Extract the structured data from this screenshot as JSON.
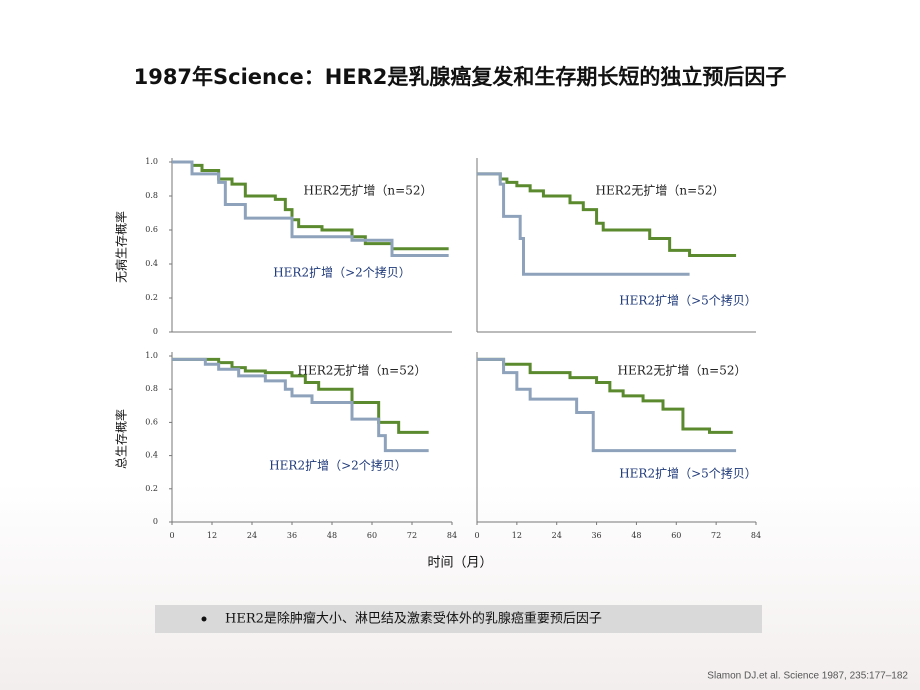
{
  "title": "1987年Science：HER2是乳腺癌复发和生存期长短的独立预后因子",
  "x_label": "时间（月）",
  "note": "HER2是除肿瘤大小、淋巴结及激素受体外的乳腺癌重要预后因子",
  "citation": "Slamon DJ.et al. Science 1987, 235:177–182",
  "chart_data": [
    {
      "type": "line",
      "step": true,
      "ylabel": "无病生存概率",
      "xlim": [
        0,
        84
      ],
      "ylim": [
        0,
        1
      ],
      "yticks": [
        {
          "value": 1,
          "label": "1.0"
        },
        {
          "value": 0.8,
          "label": "0.8"
        },
        {
          "value": 0.6,
          "label": "0.6"
        },
        {
          "value": 0.4,
          "label": "0.4"
        },
        {
          "value": 0.2,
          "label": "0.2"
        },
        {
          "value": 0,
          "label": "0"
        }
      ],
      "series": [
        {
          "name": "HER2无扩增（n=52）",
          "color": "#5b8a2e",
          "x": [
            0,
            6,
            9,
            14,
            18,
            22,
            31,
            34,
            36,
            38,
            45,
            54,
            58,
            66,
            83
          ],
          "values": [
            1,
            0.98,
            0.95,
            0.9,
            0.87,
            0.8,
            0.78,
            0.72,
            0.66,
            0.62,
            0.6,
            0.56,
            0.52,
            0.49,
            0.49
          ]
        },
        {
          "name": "HER2扩增（>2个拷贝）",
          "color": "#8fa2bb",
          "x": [
            0,
            6,
            14,
            16,
            22,
            36,
            54,
            66,
            83
          ],
          "values": [
            1,
            0.93,
            0.88,
            0.75,
            0.67,
            0.56,
            0.54,
            0.45,
            0.45
          ]
        }
      ]
    },
    {
      "type": "line",
      "step": true,
      "xlim": [
        0,
        84
      ],
      "ylim": [
        0,
        1
      ],
      "series": [
        {
          "name": "HER2无扩增（n=52）",
          "color": "#5b8a2e",
          "x": [
            0,
            7,
            9,
            12,
            16,
            20,
            28,
            32,
            36,
            38,
            52,
            58,
            64,
            78
          ],
          "values": [
            0.93,
            0.9,
            0.88,
            0.86,
            0.83,
            0.8,
            0.76,
            0.72,
            0.64,
            0.6,
            0.55,
            0.48,
            0.45,
            0.45
          ]
        },
        {
          "name": "HER2扩增（>5个拷贝）",
          "color": "#8fa2bb",
          "x": [
            0,
            7,
            8,
            13,
            14,
            64
          ],
          "values": [
            0.93,
            0.87,
            0.68,
            0.55,
            0.34,
            0.34
          ]
        }
      ]
    },
    {
      "type": "line",
      "step": true,
      "ylabel": "总生存概率",
      "xlim": [
        0,
        84
      ],
      "ylim": [
        0,
        1
      ],
      "yticks": [
        {
          "value": 1,
          "label": "1.0"
        },
        {
          "value": 0.8,
          "label": "0.8"
        },
        {
          "value": 0.6,
          "label": "0.6"
        },
        {
          "value": 0.4,
          "label": "0.4"
        },
        {
          "value": 0.2,
          "label": "0.2"
        },
        {
          "value": 0,
          "label": "0"
        }
      ],
      "xticks": [
        0,
        12,
        24,
        36,
        48,
        60,
        72,
        84
      ],
      "series": [
        {
          "name": "HER2无扩增（n=52）",
          "color": "#5b8a2e",
          "x": [
            0,
            14,
            18,
            22,
            28,
            36,
            40,
            44,
            54,
            62,
            68,
            77
          ],
          "values": [
            0.98,
            0.96,
            0.93,
            0.91,
            0.9,
            0.88,
            0.84,
            0.8,
            0.72,
            0.6,
            0.54,
            0.54
          ]
        },
        {
          "name": "HER2扩增（>2个拷贝）",
          "color": "#8fa2bb",
          "x": [
            0,
            10,
            14,
            20,
            28,
            34,
            36,
            42,
            54,
            62,
            64,
            77
          ],
          "values": [
            0.98,
            0.95,
            0.92,
            0.88,
            0.85,
            0.8,
            0.76,
            0.72,
            0.62,
            0.52,
            0.43,
            0.43
          ]
        }
      ]
    },
    {
      "type": "line",
      "step": true,
      "xlim": [
        0,
        84
      ],
      "ylim": [
        0,
        1
      ],
      "xticks": [
        0,
        12,
        24,
        36,
        48,
        60,
        72,
        84
      ],
      "series": [
        {
          "name": "HER2无扩增（n=52）",
          "color": "#5b8a2e",
          "x": [
            0,
            8,
            16,
            28,
            36,
            40,
            44,
            50,
            56,
            62,
            70,
            77
          ],
          "values": [
            0.98,
            0.95,
            0.9,
            0.87,
            0.84,
            0.79,
            0.76,
            0.73,
            0.68,
            0.56,
            0.54,
            0.54
          ]
        },
        {
          "name": "HER2扩增（>5个拷贝）",
          "color": "#8fa2bb",
          "x": [
            0,
            8,
            12,
            16,
            30,
            35,
            78
          ],
          "values": [
            0.98,
            0.9,
            0.8,
            0.74,
            0.66,
            0.43,
            0.43
          ]
        }
      ]
    }
  ]
}
